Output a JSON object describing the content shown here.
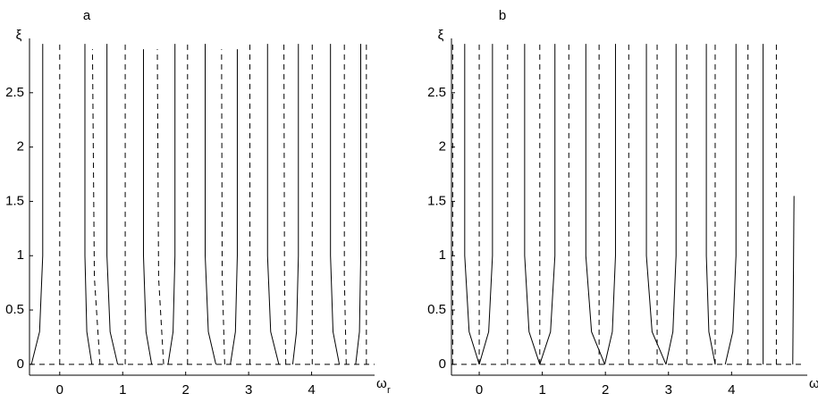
{
  "chart_data": [
    {
      "type": "line",
      "title": "a",
      "ylabel": "ξ",
      "xlabel": "ω",
      "xlabel_sub": "r",
      "xlim": [
        -0.48,
        5.0
      ],
      "ylim": [
        -0.1,
        3.0
      ],
      "xticks": [
        0,
        1,
        2,
        3,
        4
      ],
      "yticks": [
        0,
        0.5,
        1,
        1.5,
        2,
        2.5
      ],
      "series": [
        {
          "color": "#000",
          "dash": false,
          "x": [
            -0.45,
            -0.32,
            -0.27,
            -0.27
          ],
          "values": [
            0,
            0.3,
            1,
            2.95
          ]
        },
        {
          "color": "#000",
          "dash": false,
          "x": [
            0.51,
            0.43,
            0.4,
            0.4
          ],
          "values": [
            0,
            0.3,
            1,
            2.95
          ]
        },
        {
          "color": "#000",
          "dash": false,
          "x": [
            0.92,
            0.8,
            0.75,
            0.75
          ],
          "values": [
            0,
            0.3,
            1,
            2.95
          ]
        },
        {
          "color": "#000",
          "dash": false,
          "x": [
            1.46,
            1.37,
            1.33,
            1.33
          ],
          "values": [
            0,
            0.3,
            1,
            2.9
          ]
        },
        {
          "color": "#000",
          "dash": false,
          "x": [
            1.72,
            1.8,
            1.83,
            1.83
          ],
          "values": [
            0,
            0.3,
            1,
            2.95
          ]
        },
        {
          "color": "#000",
          "dash": false,
          "x": [
            2.48,
            2.36,
            2.31,
            2.31
          ],
          "values": [
            0,
            0.3,
            1,
            2.95
          ]
        },
        {
          "color": "#000",
          "dash": false,
          "x": [
            2.71,
            2.79,
            2.82,
            2.82
          ],
          "values": [
            0,
            0.3,
            1,
            2.9
          ]
        },
        {
          "color": "#000",
          "dash": false,
          "x": [
            3.48,
            3.35,
            3.3,
            3.3
          ],
          "values": [
            0,
            0.3,
            1,
            2.95
          ]
        },
        {
          "color": "#000",
          "dash": false,
          "x": [
            3.7,
            3.76,
            3.79,
            3.79
          ],
          "values": [
            0,
            0.3,
            1,
            2.95
          ]
        },
        {
          "color": "#000",
          "dash": false,
          "x": [
            4.44,
            4.34,
            4.3,
            4.3
          ],
          "values": [
            0,
            0.3,
            1,
            2.95
          ]
        },
        {
          "color": "#000",
          "dash": false,
          "x": [
            4.7,
            4.76,
            4.78,
            4.78
          ],
          "values": [
            0,
            0.3,
            1,
            2.95
          ]
        },
        {
          "color": "#000",
          "dash": true,
          "x": [
            -0.48,
            5.0
          ],
          "values": [
            0,
            0
          ]
        },
        {
          "color": "#000",
          "dash": true,
          "x": [
            0,
            0
          ],
          "values": [
            0,
            2.95
          ]
        },
        {
          "color": "#000",
          "dash": true,
          "x": [
            0.64,
            0.55,
            0.52
          ],
          "values": [
            0,
            0.8,
            2.9
          ]
        },
        {
          "color": "#000",
          "dash": true,
          "x": [
            1.04,
            1.04
          ],
          "values": [
            0,
            2.95
          ]
        },
        {
          "color": "#000",
          "dash": true,
          "x": [
            1.65,
            1.57,
            1.55
          ],
          "values": [
            0,
            0.8,
            2.9
          ]
        },
        {
          "color": "#000",
          "dash": true,
          "x": [
            2.03,
            2.03
          ],
          "values": [
            0,
            2.95
          ]
        },
        {
          "color": "#000",
          "dash": true,
          "x": [
            2.62,
            2.58,
            2.57
          ],
          "values": [
            0,
            0.8,
            2.9
          ]
        },
        {
          "color": "#000",
          "dash": true,
          "x": [
            3.02,
            3.02
          ],
          "values": [
            0,
            2.95
          ]
        },
        {
          "color": "#000",
          "dash": true,
          "x": [
            3.59,
            3.57,
            3.56
          ],
          "values": [
            0,
            0.8,
            2.95
          ]
        },
        {
          "color": "#000",
          "dash": true,
          "x": [
            4.01,
            4.01
          ],
          "values": [
            0,
            2.95
          ]
        },
        {
          "color": "#000",
          "dash": true,
          "x": [
            4.55,
            4.52,
            4.52
          ],
          "values": [
            0,
            0.8,
            2.95
          ]
        },
        {
          "color": "#000",
          "dash": true,
          "x": [
            4.87,
            4.87
          ],
          "values": [
            0,
            2.95
          ]
        }
      ]
    },
    {
      "type": "line",
      "title": "b",
      "ylabel": "ξ",
      "xlabel": "ω",
      "xlabel_sub": "r",
      "xlim": [
        -0.44,
        5.2
      ],
      "ylim": [
        -0.1,
        3.0
      ],
      "xticks": [
        0,
        1,
        2,
        3,
        4
      ],
      "yticks": [
        0,
        0.5,
        1,
        1.5,
        2,
        2.5
      ],
      "series": [
        {
          "color": "#000",
          "dash": false,
          "x": [
            0,
            -0.16,
            -0.23,
            -0.23
          ],
          "values": [
            0,
            0.3,
            1,
            2.95
          ]
        },
        {
          "color": "#000",
          "dash": false,
          "x": [
            0,
            0.15,
            0.21,
            0.21
          ],
          "values": [
            0,
            0.3,
            1,
            2.95
          ]
        },
        {
          "color": "#000",
          "dash": false,
          "x": [
            0.96,
            0.79,
            0.72,
            0.72
          ],
          "values": [
            0,
            0.3,
            1,
            2.95
          ]
        },
        {
          "color": "#000",
          "dash": false,
          "x": [
            0.96,
            1.13,
            1.2,
            1.2
          ],
          "values": [
            0,
            0.3,
            1,
            2.95
          ]
        },
        {
          "color": "#000",
          "dash": false,
          "x": [
            1.99,
            1.78,
            1.69,
            1.69
          ],
          "values": [
            0,
            0.3,
            1,
            2.95
          ]
        },
        {
          "color": "#000",
          "dash": false,
          "x": [
            1.99,
            2.11,
            2.16,
            2.16
          ],
          "values": [
            0,
            0.3,
            1,
            2.95
          ]
        },
        {
          "color": "#000",
          "dash": false,
          "x": [
            2.96,
            2.74,
            2.65,
            2.65
          ],
          "values": [
            0,
            0.3,
            1,
            2.95
          ]
        },
        {
          "color": "#000",
          "dash": false,
          "x": [
            2.96,
            3.07,
            3.12,
            3.12
          ],
          "values": [
            0,
            0.3,
            1,
            2.95
          ]
        },
        {
          "color": "#000",
          "dash": false,
          "x": [
            3.74,
            3.64,
            3.6,
            3.6
          ],
          "values": [
            0,
            0.3,
            1,
            2.95
          ]
        },
        {
          "color": "#000",
          "dash": false,
          "x": [
            3.9,
            4.02,
            4.07,
            4.07
          ],
          "values": [
            0,
            0.3,
            1,
            2.95
          ]
        },
        {
          "color": "#000",
          "dash": false,
          "x": [
            4.5,
            4.5
          ],
          "values": [
            0,
            2.95
          ]
        },
        {
          "color": "#000",
          "dash": false,
          "x": [
            4.97,
            4.99
          ],
          "values": [
            0,
            1.55
          ]
        },
        {
          "color": "#000",
          "dash": true,
          "x": [
            -0.44,
            5.1
          ],
          "values": [
            0,
            0
          ]
        },
        {
          "color": "#000",
          "dash": true,
          "x": [
            -0.42,
            -0.42
          ],
          "values": [
            0,
            2.95
          ]
        },
        {
          "color": "#000",
          "dash": true,
          "x": [
            0,
            0
          ],
          "values": [
            0,
            2.95
          ]
        },
        {
          "color": "#000",
          "dash": true,
          "x": [
            0.45,
            0.45
          ],
          "values": [
            0,
            2.95
          ]
        },
        {
          "color": "#000",
          "dash": true,
          "x": [
            0.96,
            0.96
          ],
          "values": [
            0,
            2.95
          ]
        },
        {
          "color": "#000",
          "dash": true,
          "x": [
            1.42,
            1.42
          ],
          "values": [
            0,
            2.95
          ]
        },
        {
          "color": "#000",
          "dash": true,
          "x": [
            1.9,
            1.9
          ],
          "values": [
            0,
            2.95
          ]
        },
        {
          "color": "#000",
          "dash": true,
          "x": [
            2.37,
            2.37
          ],
          "values": [
            0,
            2.95
          ]
        },
        {
          "color": "#000",
          "dash": true,
          "x": [
            2.82,
            2.82
          ],
          "values": [
            0,
            2.95
          ]
        },
        {
          "color": "#000",
          "dash": true,
          "x": [
            3.29,
            3.29
          ],
          "values": [
            0,
            2.95
          ]
        },
        {
          "color": "#000",
          "dash": true,
          "x": [
            3.74,
            3.74
          ],
          "values": [
            0,
            2.95
          ]
        },
        {
          "color": "#000",
          "dash": true,
          "x": [
            4.26,
            4.26
          ],
          "values": [
            0,
            2.95
          ]
        },
        {
          "color": "#000",
          "dash": true,
          "x": [
            4.71,
            4.71
          ],
          "values": [
            0,
            2.95
          ]
        }
      ]
    }
  ]
}
